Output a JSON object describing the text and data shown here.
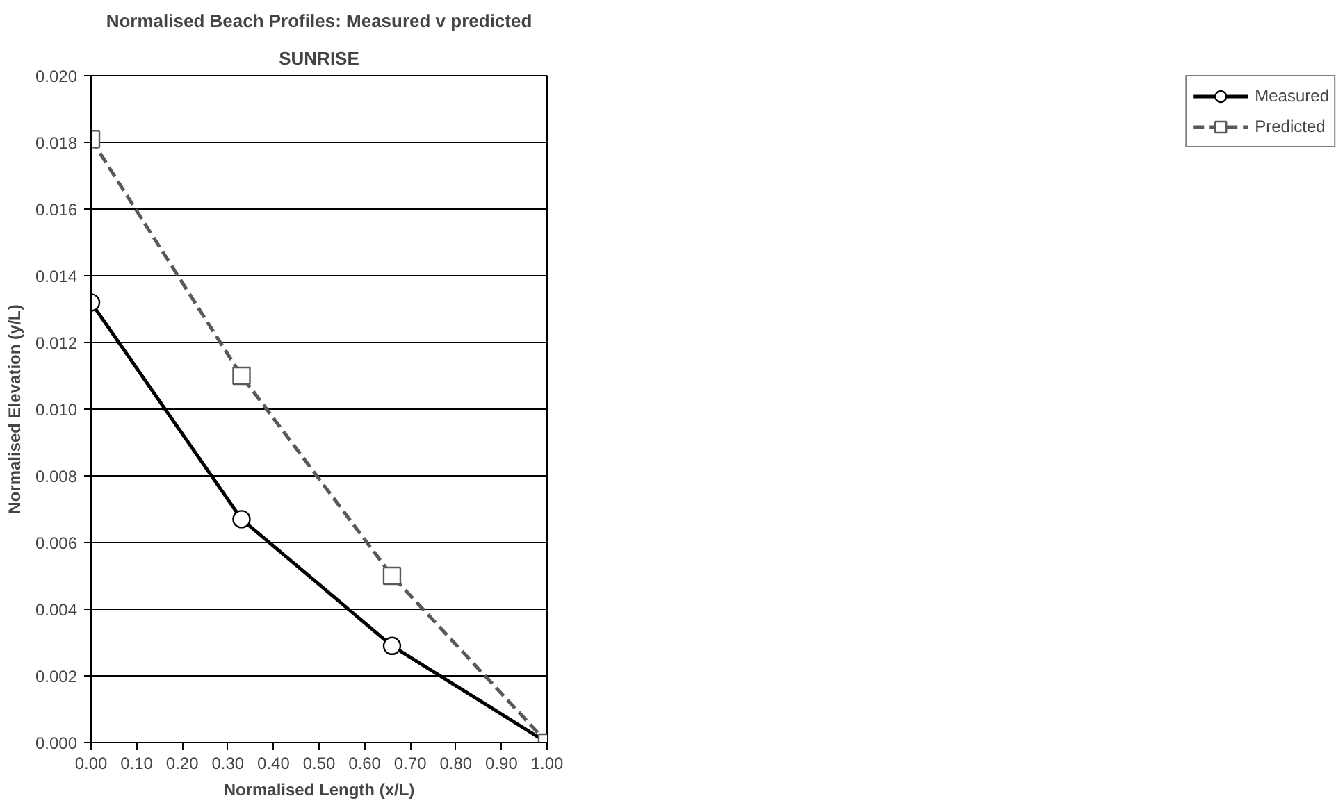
{
  "chart_data": {
    "type": "line",
    "title": "Normalised Beach Profiles: Measured v predicted",
    "subtitle": "SUNRISE",
    "xlabel": "Normalised Length (x/L)",
    "ylabel": "Normalised Elevation (y/L)",
    "x": [
      0,
      0.33,
      0.66,
      1.0
    ],
    "series": [
      {
        "name": "Measured",
        "color": "#000000",
        "values": [
          0.0132,
          0.0067,
          0.0029,
          0.0
        ],
        "marker": "circle",
        "line_style": "solid"
      },
      {
        "name": "Predicted",
        "color": "#595959",
        "values": [
          0.0181,
          0.011,
          0.005,
          0.0
        ],
        "marker": "square",
        "line_style": "dashed"
      }
    ],
    "xlim": [
      0,
      1.0
    ],
    "ylim": [
      0,
      0.02
    ],
    "xticks": [
      {
        "value": 0,
        "label": "0.00"
      },
      {
        "value": 0.1,
        "label": "0.10"
      },
      {
        "value": 0.2,
        "label": "0.20"
      },
      {
        "value": 0.3,
        "label": "0.30"
      },
      {
        "value": 0.4,
        "label": "0.40"
      },
      {
        "value": 0.5,
        "label": "0.50"
      },
      {
        "value": 0.6,
        "label": "0.60"
      },
      {
        "value": 0.7,
        "label": "0.70"
      },
      {
        "value": 0.8,
        "label": "0.80"
      },
      {
        "value": 0.9,
        "label": "0.90"
      },
      {
        "value": 1.0,
        "label": "1.00"
      }
    ],
    "yticks": [
      {
        "value": 0,
        "label": "0.000"
      },
      {
        "value": 0.002,
        "label": "0.002"
      },
      {
        "value": 0.004,
        "label": "0.004"
      },
      {
        "value": 0.006,
        "label": "0.006"
      },
      {
        "value": 0.008,
        "label": "0.008"
      },
      {
        "value": 0.01,
        "label": "0.010"
      },
      {
        "value": 0.012,
        "label": "0.012"
      },
      {
        "value": 0.014,
        "label": "0.014"
      },
      {
        "value": 0.016,
        "label": "0.016"
      },
      {
        "value": 0.018,
        "label": "0.018"
      },
      {
        "value": 0.02,
        "label": "0.020"
      }
    ],
    "grid": "y",
    "legend": "right"
  }
}
